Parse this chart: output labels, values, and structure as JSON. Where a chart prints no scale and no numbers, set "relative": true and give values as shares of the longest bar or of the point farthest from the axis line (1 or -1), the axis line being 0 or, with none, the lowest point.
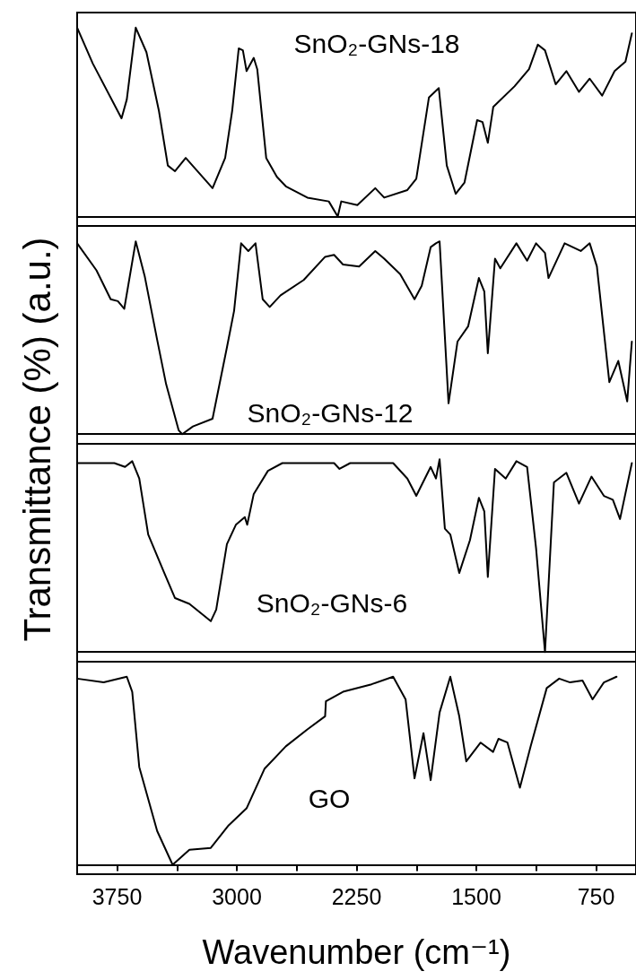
{
  "chart_data": [
    {
      "type": "line",
      "relative": true,
      "ylabel": "Transmittance (%) (a.u.)",
      "xlim": [
        4000,
        500
      ],
      "tick_labels": false,
      "series": [
        {
          "name": "SnO₂-GNs-18",
          "color": "#000000",
          "x": [
            4000,
            3902,
            3722,
            3689,
            3633,
            3566,
            3488,
            3432,
            3387,
            3320,
            3152,
            3073,
            3029,
            2988,
            2962,
            2939,
            2894,
            2872,
            2816,
            2749,
            2693,
            2558,
            2424,
            2368,
            2346,
            2245,
            2133,
            2077,
            1932,
            1876,
            1797,
            1735,
            1685,
            1629,
            1574,
            1495,
            1461,
            1428,
            1394,
            1260,
            1170,
            1115,
            1070,
            1003,
            936,
            857,
            790,
            712,
            634,
            566,
            526
          ],
          "values": [
            1.0,
            0.81,
            0.52,
            0.62,
            1.0,
            0.87,
            0.56,
            0.27,
            0.24,
            0.31,
            0.15,
            0.31,
            0.56,
            0.89,
            0.88,
            0.77,
            0.84,
            0.78,
            0.31,
            0.21,
            0.16,
            0.1,
            0.08,
            0.0,
            0.08,
            0.06,
            0.15,
            0.1,
            0.14,
            0.2,
            0.63,
            0.68,
            0.27,
            0.12,
            0.18,
            0.51,
            0.5,
            0.39,
            0.58,
            0.69,
            0.78,
            0.91,
            0.88,
            0.7,
            0.77,
            0.66,
            0.73,
            0.64,
            0.77,
            0.82,
            0.97
          ]
        }
      ]
    },
    {
      "type": "line",
      "relative": true,
      "xlim": [
        4000,
        500
      ],
      "tick_labels": false,
      "series": [
        {
          "name": "SnO₂-GNs-12",
          "color": "#000000",
          "x": [
            4000,
            3879,
            3790,
            3745,
            3705,
            3633,
            3577,
            3499,
            3443,
            3364,
            3342,
            3275,
            3152,
            3062,
            3017,
            2973,
            2928,
            2883,
            2838,
            2794,
            2726,
            2581,
            2447,
            2391,
            2335,
            2234,
            2133,
            2077,
            1977,
            1887,
            1842,
            1786,
            1753,
            1730,
            1674,
            1618,
            1551,
            1484,
            1450,
            1428,
            1383,
            1350,
            1249,
            1182,
            1126,
            1070,
            1048,
            947,
            846,
            790,
            745,
            667,
            611,
            555,
            526
          ],
          "values": [
            0.99,
            0.85,
            0.7,
            0.69,
            0.65,
            1.0,
            0.82,
            0.49,
            0.26,
            0.02,
            0.0,
            0.04,
            0.08,
            0.45,
            0.64,
            0.99,
            0.95,
            0.99,
            0.7,
            0.66,
            0.72,
            0.8,
            0.92,
            0.93,
            0.88,
            0.87,
            0.95,
            0.91,
            0.83,
            0.7,
            0.77,
            0.97,
            0.99,
            1.0,
            0.16,
            0.48,
            0.56,
            0.81,
            0.74,
            0.42,
            0.91,
            0.86,
            0.99,
            0.9,
            0.99,
            0.94,
            0.81,
            0.99,
            0.95,
            0.99,
            0.87,
            0.27,
            0.38,
            0.17,
            0.48
          ]
        }
      ]
    },
    {
      "type": "line",
      "relative": true,
      "xlim": [
        4000,
        500
      ],
      "tick_labels": false,
      "series": [
        {
          "name": "SnO₂-GNs-6",
          "color": "#000000",
          "x": [
            4000,
            3767,
            3700,
            3655,
            3611,
            3555,
            3454,
            3387,
            3297,
            3163,
            3129,
            3062,
            3006,
            2950,
            2935,
            2894,
            2805,
            2715,
            2391,
            2357,
            2290,
            2021,
            1932,
            1876,
            1786,
            1753,
            1730,
            1697,
            1663,
            1607,
            1540,
            1484,
            1450,
            1428,
            1383,
            1316,
            1249,
            1182,
            1126,
            1070,
            1014,
            936,
            857,
            779,
            701,
            645,
            600,
            526
          ],
          "values": [
            0.98,
            0.98,
            0.96,
            0.99,
            0.9,
            0.61,
            0.41,
            0.28,
            0.25,
            0.16,
            0.22,
            0.56,
            0.66,
            0.7,
            0.66,
            0.82,
            0.94,
            0.98,
            0.98,
            0.95,
            0.98,
            0.98,
            0.9,
            0.81,
            0.96,
            0.9,
            1.0,
            0.64,
            0.61,
            0.41,
            0.58,
            0.8,
            0.73,
            0.39,
            0.95,
            0.9,
            0.99,
            0.96,
            0.54,
            0.0,
            0.88,
            0.93,
            0.77,
            0.91,
            0.81,
            0.79,
            0.69,
            0.98
          ]
        }
      ]
    },
    {
      "type": "line",
      "relative": true,
      "xlabel": "Wavenumber (cm⁻¹)",
      "xlim": [
        4000,
        500
      ],
      "xticks": [
        3750,
        {
          "value": 3375,
          "label": null
        },
        3000,
        {
          "value": 2625,
          "label": null
        },
        2250,
        {
          "value": 1875,
          "label": null
        },
        1500,
        {
          "value": 1125,
          "label": null
        },
        750
      ],
      "tick_labels": "x",
      "series": [
        {
          "name": "GO",
          "color": "#000000",
          "x": [
            4000,
            3834,
            3689,
            3655,
            3611,
            3499,
            3402,
            3297,
            3163,
            3051,
            2939,
            2827,
            2693,
            2558,
            2447,
            2442,
            2335,
            2156,
            2021,
            1943,
            1887,
            1831,
            1786,
            1730,
            1663,
            1607,
            1563,
            1473,
            1395,
            1361,
            1305,
            1227,
            1160,
            1059,
            981,
            913,
            835,
            772,
            701,
            622
          ],
          "values": [
            0.99,
            0.97,
            1.0,
            0.92,
            0.52,
            0.18,
            0.0,
            0.08,
            0.09,
            0.21,
            0.3,
            0.51,
            0.63,
            0.72,
            0.79,
            0.87,
            0.92,
            0.96,
            1.0,
            0.88,
            0.46,
            0.7,
            0.45,
            0.81,
            1.0,
            0.79,
            0.55,
            0.65,
            0.6,
            0.67,
            0.65,
            0.41,
            0.63,
            0.94,
            0.99,
            0.97,
            0.98,
            0.88,
            0.97,
            1.0
          ]
        }
      ]
    }
  ]
}
